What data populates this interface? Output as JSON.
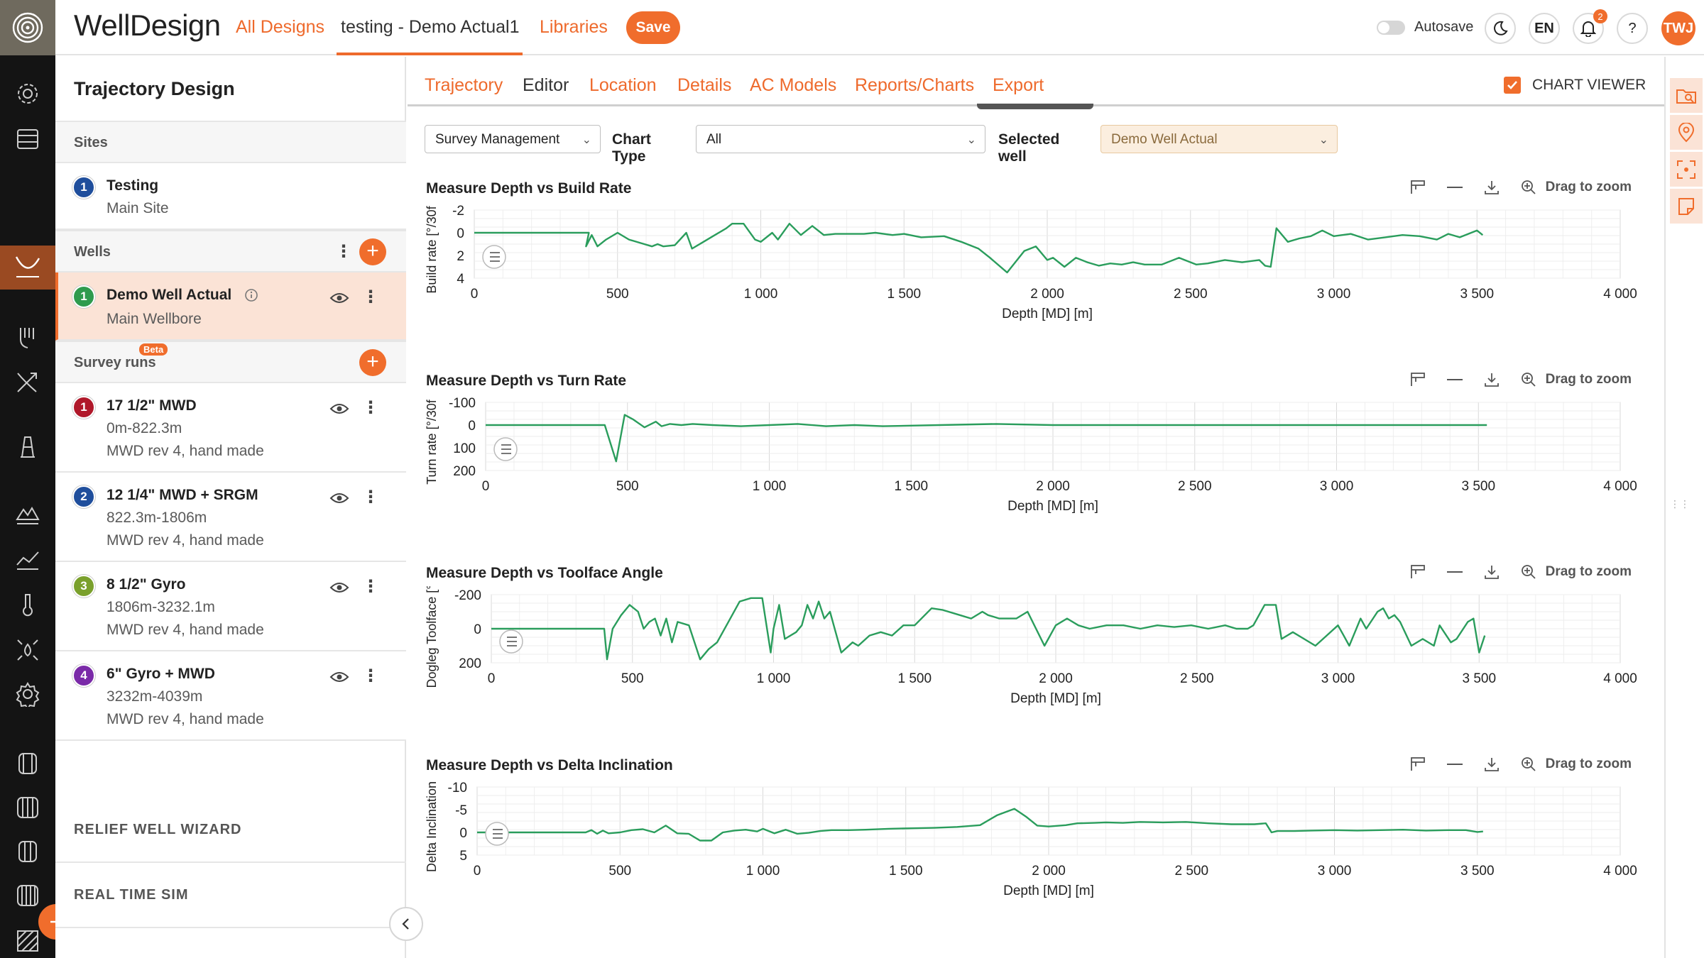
{
  "app": {
    "brand": "WellDesign",
    "nav": {
      "all_designs": "All Designs",
      "current_design": "testing - Demo Actual1",
      "libraries": "Libraries",
      "save": "Save"
    },
    "autosave_label": "Autosave",
    "language": "EN",
    "help": "?",
    "notifications_count": "2",
    "user_initials": "TWJ",
    "accent_color": "#f06d2c"
  },
  "left_panel": {
    "title": "Trajectory Design",
    "sites_label": "Sites",
    "sites": [
      {
        "num": "1",
        "name": "Testing",
        "sub": "Main Site",
        "color": "#1f4e9c"
      }
    ],
    "wells_label": "Wells",
    "wells": [
      {
        "num": "1",
        "name": "Demo Well Actual",
        "sub": "Main Wellbore",
        "color": "#2e9b4e"
      }
    ],
    "survey_label": "Survey runs",
    "beta_label": "Beta",
    "surveys": [
      {
        "num": "1",
        "name": "17 1/2\" MWD",
        "range": "0m-822.3m",
        "desc": "MWD rev 4, hand made",
        "color": "#b0182a"
      },
      {
        "num": "2",
        "name": "12 1/4\" MWD + SRGM",
        "range": "822.3m-1806m",
        "desc": "MWD rev 4, hand made",
        "color": "#1f4e9c"
      },
      {
        "num": "3",
        "name": "8 1/2\" Gyro",
        "range": "1806m-3232.1m",
        "desc": "MWD rev 4, hand made",
        "color": "#7aa02c"
      },
      {
        "num": "4",
        "name": "6\" Gyro + MWD",
        "range": "3232m-4039m",
        "desc": "MWD rev 4, hand made",
        "color": "#7a2aa8"
      }
    ],
    "relief_label": "RELIEF WELL WIZARD",
    "realtime_label": "REAL TIME SIM"
  },
  "tabs": [
    {
      "label": "Trajectory"
    },
    {
      "label": "Editor"
    },
    {
      "label": "Location"
    },
    {
      "label": "Details"
    },
    {
      "label": "AC Models"
    },
    {
      "label": "Reports/Charts"
    },
    {
      "label": "Export"
    }
  ],
  "chart_viewer_label": "CHART VIEWER",
  "filters": {
    "mode": "Survey Management",
    "chart_type_label": "Chart Type",
    "chart_type": "All",
    "selected_well_label": "Selected well",
    "selected_well": "Demo Well Actual"
  },
  "drag_to_zoom_label": "Drag to zoom",
  "chart_data": [
    {
      "type": "line",
      "title": "Measure Depth vs Build Rate",
      "xlabel": "Depth [MD] [m]",
      "ylabel": "Build rate [°/30f",
      "xlim": [
        0,
        4000
      ],
      "ylim": [
        -2,
        4
      ],
      "y_inverted": true,
      "xticks": [
        "0",
        "500",
        "1 000",
        "1 500",
        "2 000",
        "2 500",
        "3 000",
        "3 500",
        "4 000"
      ],
      "yticks": [
        "-2",
        "0",
        "2",
        "4"
      ],
      "ytick_values": [
        -2,
        0,
        2,
        4
      ],
      "color": "#2a9d5c",
      "x": [
        0,
        200,
        400,
        390,
        410,
        430,
        460,
        500,
        540,
        580,
        620,
        640,
        660,
        700,
        740,
        760,
        800,
        840,
        880,
        900,
        940,
        980,
        1000,
        1040,
        1060,
        1100,
        1140,
        1180,
        1220,
        1260,
        1300,
        1360,
        1400,
        1460,
        1500,
        1560,
        1640,
        1700,
        1760,
        1800,
        1860,
        1920,
        1960,
        2000,
        2020,
        2060,
        2100,
        2140,
        2180,
        2220,
        2260,
        2300,
        2340,
        2400,
        2460,
        2520,
        2560,
        2620,
        2680,
        2740,
        2760,
        2780,
        2800,
        2840,
        2880,
        2920,
        2960,
        3000,
        3060,
        3120,
        3180,
        3240,
        3300,
        3360,
        3400,
        3440,
        3500,
        3520
      ],
      "y": [
        0,
        0,
        0,
        1.2,
        0.2,
        1.2,
        0.6,
        0,
        0.6,
        0.9,
        1.2,
        1.0,
        1.2,
        1.1,
        0,
        1.4,
        0.8,
        0.2,
        -0.4,
        -0.8,
        -0.8,
        0.6,
        0.8,
        0,
        0.6,
        -0.8,
        0.2,
        -0.6,
        0.2,
        0.1,
        0.1,
        0.1,
        0,
        0.2,
        0.1,
        0.4,
        0.3,
        0.8,
        1.4,
        2.2,
        3.5,
        1.6,
        1.2,
        2.4,
        2.2,
        3.0,
        2.2,
        2.6,
        2.9,
        2.7,
        2.8,
        2.6,
        2.8,
        2.8,
        2.2,
        2.8,
        2.7,
        2.4,
        2.6,
        2.4,
        2.9,
        3.0,
        -0.4,
        0.8,
        0.5,
        0.3,
        -0.2,
        0.3,
        0.1,
        0.6,
        0.4,
        0.2,
        0.3,
        0.6,
        0.1,
        0.4,
        -0.2,
        0.2
      ]
    },
    {
      "type": "line",
      "title": "Measure Depth vs Turn Rate",
      "xlabel": "Depth [MD] [m]",
      "ylabel": "Turn rate [°/30f",
      "xlim": [
        0,
        4000
      ],
      "ylim": [
        -100,
        200
      ],
      "y_inverted": true,
      "xticks": [
        "0",
        "500",
        "1 000",
        "1 500",
        "2 000",
        "2 500",
        "3 000",
        "3 500",
        "4 000"
      ],
      "yticks": [
        "-100",
        "0",
        "100",
        "200"
      ],
      "ytick_values": [
        -100,
        0,
        100,
        200
      ],
      "color": "#2a9d5c",
      "x": [
        0,
        200,
        400,
        420,
        460,
        490,
        520,
        560,
        600,
        620,
        650,
        690,
        730,
        800,
        900,
        1000,
        1100,
        1200,
        1300,
        1400,
        1600,
        1800,
        2000,
        2200,
        2400,
        2600,
        2800,
        3000,
        3200,
        3400,
        3530
      ],
      "y": [
        0,
        0,
        0,
        0,
        160,
        -45,
        -25,
        10,
        -15,
        5,
        -5,
        0,
        -5,
        0,
        5,
        0,
        -5,
        5,
        0,
        5,
        0,
        -5,
        0,
        0,
        0,
        0,
        0,
        0,
        0,
        0,
        0
      ]
    },
    {
      "type": "line",
      "title": "Measure Depth vs Toolface Angle",
      "xlabel": "Depth [MD] [m]",
      "ylabel": "Dogleg Toolface [°/",
      "xlim": [
        0,
        4000
      ],
      "ylim": [
        -200,
        200
      ],
      "y_inverted": true,
      "xticks": [
        "0",
        "500",
        "1 000",
        "1 500",
        "2 000",
        "2 500",
        "3 000",
        "3 500",
        "4 000"
      ],
      "yticks": [
        "-200",
        "0",
        "200"
      ],
      "ytick_values": [
        -200,
        0,
        200
      ],
      "color": "#2a9d5c",
      "x": [
        0,
        200,
        400,
        410,
        430,
        460,
        490,
        520,
        540,
        560,
        580,
        600,
        620,
        640,
        660,
        700,
        740,
        770,
        800,
        840,
        880,
        920,
        960,
        990,
        1000,
        1020,
        1040,
        1080,
        1100,
        1120,
        1140,
        1160,
        1180,
        1200,
        1240,
        1280,
        1300,
        1340,
        1380,
        1420,
        1460,
        1500,
        1560,
        1600,
        1660,
        1700,
        1740,
        1760,
        1800,
        1860,
        1900,
        1960,
        2000,
        2040,
        2080,
        2120,
        2180,
        2240,
        2300,
        2360,
        2420,
        2480,
        2540,
        2600,
        2640,
        2680,
        2700,
        2740,
        2780,
        2800,
        2840,
        2880,
        2920,
        2960,
        3000,
        3020,
        3040,
        3080,
        3100,
        3140,
        3160,
        3180,
        3200,
        3220,
        3260,
        3300,
        3340,
        3360,
        3400,
        3420,
        3460,
        3480,
        3500,
        3520
      ],
      "y": [
        0,
        0,
        0,
        180,
        0,
        -80,
        -140,
        -100,
        0,
        -40,
        -60,
        40,
        -60,
        80,
        -40,
        -20,
        180,
        120,
        80,
        -40,
        -160,
        -180,
        -180,
        140,
        0,
        -140,
        60,
        20,
        -20,
        -140,
        -60,
        -160,
        -60,
        -100,
        140,
        80,
        100,
        40,
        20,
        40,
        -20,
        -20,
        -120,
        -110,
        -80,
        -60,
        -100,
        -80,
        -60,
        -60,
        -100,
        100,
        -20,
        -60,
        -20,
        0,
        -20,
        -20,
        0,
        -20,
        -10,
        -20,
        0,
        -20,
        0,
        0,
        -20,
        -140,
        -140,
        60,
        20,
        60,
        100,
        40,
        -20,
        40,
        100,
        -60,
        0,
        -100,
        -120,
        -60,
        -80,
        -40,
        100,
        60,
        100,
        -20,
        80,
        60,
        -40,
        -60,
        140,
        40
      ],
      "y_sign_note": ""
    },
    {
      "type": "line",
      "title": "Measure Depth vs Delta Inclination",
      "xlabel": "Depth [MD] [m]",
      "ylabel": "Delta Inclination",
      "xlim": [
        0,
        4000
      ],
      "ylim": [
        -10,
        5
      ],
      "y_inverted": true,
      "xticks": [
        "0",
        "500",
        "1 000",
        "1 500",
        "2 000",
        "2 500",
        "3 000",
        "3 500",
        "4 000"
      ],
      "yticks": [
        "-10",
        "-5",
        "0",
        "5"
      ],
      "ytick_values": [
        -10,
        -5,
        0,
        5
      ],
      "color": "#2a9d5c",
      "x": [
        0,
        200,
        380,
        400,
        420,
        440,
        460,
        500,
        540,
        580,
        620,
        660,
        700,
        740,
        780,
        820,
        860,
        900,
        940,
        980,
        1000,
        1040,
        1080,
        1120,
        1160,
        1200,
        1240,
        1300,
        1360,
        1440,
        1520,
        1600,
        1680,
        1760,
        1820,
        1880,
        1920,
        1960,
        2000,
        2060,
        2100,
        2160,
        2200,
        2260,
        2320,
        2400,
        2480,
        2560,
        2640,
        2720,
        2760,
        2780,
        2800,
        2860,
        2920,
        3000,
        3080,
        3160,
        3240,
        3320,
        3400,
        3460,
        3500,
        3520
      ],
      "y": [
        0,
        0,
        0,
        -0.5,
        0.3,
        -0.4,
        0.2,
        0,
        -0.5,
        -0.7,
        0,
        -1.5,
        0.2,
        0.3,
        1.8,
        1.8,
        0,
        -0.4,
        -0.6,
        -0.2,
        -0.8,
        0.2,
        -0.6,
        0.3,
        0.1,
        -0.3,
        -0.5,
        -0.5,
        -0.6,
        -0.8,
        -0.9,
        -1.0,
        -1.2,
        -1.6,
        -3.8,
        -5.2,
        -3.5,
        -1.5,
        -1.3,
        -1.6,
        -2.0,
        -2.1,
        -2.2,
        -2.1,
        -2.3,
        -2.2,
        -2.3,
        -2.0,
        -1.8,
        -1.8,
        -2.0,
        0,
        -0.3,
        -0.3,
        -0.4,
        -0.5,
        -0.4,
        -0.5,
        -0.6,
        -0.4,
        -0.5,
        -0.5,
        -0.1,
        -0.2
      ]
    }
  ]
}
